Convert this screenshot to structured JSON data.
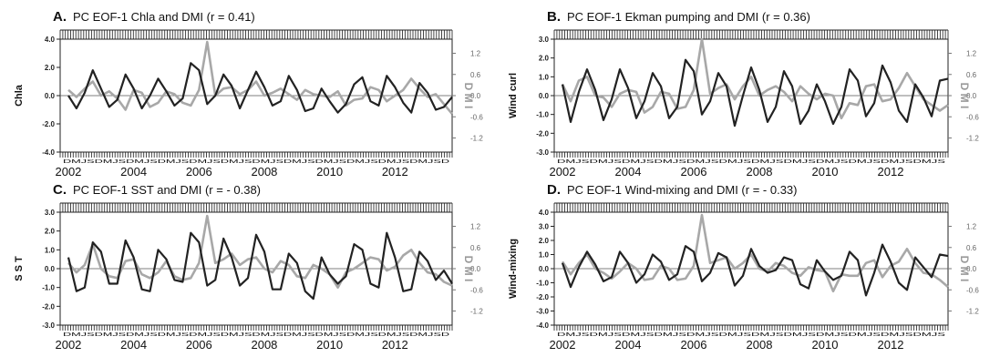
{
  "figure": {
    "panel_count": 4
  },
  "chart_data": [
    {
      "id": "A",
      "type": "line",
      "letter": "A.",
      "title": "PC EOF-1 Chla and DMI (r = 0.41)",
      "ylabel_left": "Chla",
      "ylabel_right": "D M I",
      "ylim_left": [
        -4.0,
        4.0
      ],
      "yticks_left": [
        4.0,
        2.0,
        0.0,
        -2.0,
        -4.0
      ],
      "yticks_left_labels": [
        "4.0",
        "2.0",
        "0.0",
        "-2.0",
        "-4.0"
      ],
      "ylim_right": [
        -1.6,
        1.6
      ],
      "yticks_right_labels": [
        "1.2",
        "0.6",
        "0.0",
        "-0.6",
        "-1.2"
      ],
      "yticks_right": [
        1.2,
        0.6,
        0.0,
        -0.6,
        -1.2
      ],
      "month_labels": "DMJSDMJSDMJSDMJSDMJSDMJSDMJSDMJSDMJSDMJSDMJSDMJSD",
      "year_labels": [
        "2002",
        "2004",
        "2006",
        "2008",
        "2010",
        "2012"
      ],
      "year_positions": [
        2002,
        2004,
        2006,
        2008,
        2010,
        2012
      ],
      "x": [
        2002.0,
        2002.25,
        2002.5,
        2002.75,
        2003.0,
        2003.25,
        2003.5,
        2003.75,
        2004.0,
        2004.25,
        2004.5,
        2004.75,
        2005.0,
        2005.25,
        2005.5,
        2005.75,
        2006.0,
        2006.25,
        2006.5,
        2006.75,
        2007.0,
        2007.25,
        2007.5,
        2007.75,
        2008.0,
        2008.25,
        2008.5,
        2008.75,
        2009.0,
        2009.25,
        2009.5,
        2009.75,
        2010.0,
        2010.25,
        2010.5,
        2010.75,
        2011.0,
        2011.25,
        2011.5,
        2011.75,
        2012.0,
        2012.25,
        2012.5,
        2012.75,
        2013.0,
        2013.25,
        2013.5,
        2013.75
      ],
      "xlim": [
        2001.75,
        2013.75
      ],
      "series": [
        {
          "color": "#222222",
          "axis": "left",
          "values": [
            0.0,
            -0.9,
            0.2,
            1.8,
            0.5,
            -0.8,
            -0.3,
            1.5,
            0.5,
            -0.9,
            0.0,
            1.2,
            0.3,
            -0.7,
            -0.2,
            2.3,
            1.8,
            -0.6,
            0.0,
            1.5,
            0.7,
            -0.9,
            0.4,
            1.7,
            0.6,
            -0.7,
            -0.4,
            1.4,
            0.4,
            -1.1,
            -0.9,
            0.5,
            -0.4,
            -1.2,
            -0.6,
            0.8,
            1.3,
            -0.4,
            -0.7,
            1.4,
            0.6,
            -0.5,
            -1.2,
            0.9,
            0.2,
            -1.0,
            -0.8,
            -0.1
          ]
        },
        {
          "color": "#a8a8a8",
          "axis": "left",
          "values": [
            0.4,
            -0.1,
            0.5,
            1.0,
            0.0,
            0.3,
            -0.2,
            -1.0,
            0.4,
            0.2,
            -0.8,
            -0.5,
            0.3,
            0.1,
            -0.5,
            -0.7,
            0.4,
            3.8,
            0.0,
            0.5,
            0.6,
            0.1,
            0.4,
            1.0,
            0.0,
            0.2,
            0.5,
            0.1,
            -0.3,
            0.4,
            0.1,
            0.0,
            -0.1,
            0.3,
            -0.7,
            -0.3,
            -0.2,
            0.6,
            0.4,
            -0.4,
            0.0,
            0.4,
            1.2,
            0.5,
            -0.1,
            0.1,
            -0.6,
            -1.3
          ]
        }
      ]
    },
    {
      "id": "B",
      "type": "line",
      "letter": "B.",
      "title": "PC EOF-1 Ekman pumping and DMI (r = 0.36)",
      "ylabel_left": "Wind curl",
      "ylabel_right": "D M I",
      "ylim_left": [
        -3.0,
        3.0
      ],
      "yticks_left": [
        3.0,
        2.0,
        1.0,
        0.0,
        -1.0,
        -2.0,
        -3.0
      ],
      "yticks_left_labels": [
        "3.0",
        "2.0",
        "1.0",
        "0.0",
        "-1.0",
        "-2.0",
        "-3.0"
      ],
      "ylim_right": [
        -1.6,
        1.6
      ],
      "yticks_right_labels": [
        "1.2",
        "0.6",
        "0.0",
        "-0.6",
        "-1.2"
      ],
      "yticks_right": [
        1.2,
        0.6,
        0.0,
        -0.6,
        -1.2
      ],
      "month_labels": "DMJSDMJSDMJSDMJSDMJSDMJSDMJSDMJSDMJSDMJSDMJSDMJS",
      "year_labels": [
        "2002",
        "2004",
        "2006",
        "2008",
        "2010",
        "2012"
      ],
      "year_positions": [
        2002,
        2004,
        2006,
        2008,
        2010,
        2012
      ],
      "x": [
        2002.0,
        2002.25,
        2002.5,
        2002.75,
        2003.0,
        2003.25,
        2003.5,
        2003.75,
        2004.0,
        2004.25,
        2004.5,
        2004.75,
        2005.0,
        2005.25,
        2005.5,
        2005.75,
        2006.0,
        2006.25,
        2006.5,
        2006.75,
        2007.0,
        2007.25,
        2007.5,
        2007.75,
        2008.0,
        2008.25,
        2008.5,
        2008.75,
        2009.0,
        2009.25,
        2009.5,
        2009.75,
        2010.0,
        2010.25,
        2010.5,
        2010.75,
        2011.0,
        2011.25,
        2011.5,
        2011.75,
        2012.0,
        2012.25,
        2012.5,
        2012.75,
        2013.0,
        2013.25,
        2013.5,
        2013.75
      ],
      "xlim": [
        2001.75,
        2013.75
      ],
      "series": [
        {
          "color": "#222222",
          "axis": "left",
          "values": [
            0.6,
            -1.4,
            0.2,
            1.4,
            0.3,
            -1.3,
            -0.2,
            1.4,
            0.4,
            -1.2,
            -0.3,
            1.2,
            0.5,
            -1.2,
            -0.6,
            1.9,
            1.3,
            -1.0,
            -0.3,
            1.2,
            0.5,
            -1.6,
            0.0,
            1.5,
            0.3,
            -1.4,
            -0.6,
            1.3,
            0.5,
            -1.5,
            -0.8,
            0.6,
            -0.3,
            -1.5,
            -0.6,
            1.4,
            0.8,
            -1.1,
            -0.4,
            1.6,
            0.7,
            -0.8,
            -1.4,
            0.6,
            -0.1,
            -1.1,
            0.8,
            0.9
          ]
        },
        {
          "color": "#a8a8a8",
          "axis": "left",
          "values": [
            0.6,
            -0.3,
            0.8,
            1.0,
            0.0,
            -0.1,
            -0.6,
            0.1,
            0.3,
            0.2,
            -0.9,
            -0.6,
            0.2,
            0.1,
            -0.7,
            -0.6,
            0.3,
            3.0,
            0.1,
            0.4,
            0.6,
            -0.2,
            0.5,
            1.0,
            0.0,
            0.3,
            0.5,
            0.2,
            -0.3,
            0.5,
            0.1,
            -0.2,
            0.1,
            0.0,
            -1.2,
            -0.4,
            -0.5,
            0.5,
            0.6,
            -0.3,
            -0.2,
            0.4,
            1.2,
            0.5,
            -0.2,
            -0.5,
            -0.8,
            -0.5
          ]
        }
      ]
    },
    {
      "id": "C",
      "type": "line",
      "letter": "C.",
      "title": "PC EOF-1 SST and DMI (r = - 0.38)",
      "ylabel_left": "S S T",
      "ylabel_right": "D M I",
      "ylim_left": [
        -3.0,
        3.0
      ],
      "yticks_left": [
        3.0,
        2.0,
        1.0,
        0.0,
        -1.0,
        -2.0,
        -3.0
      ],
      "yticks_left_labels": [
        "3.0",
        "2.0",
        "1.0",
        "0.0",
        "-1.0",
        "-2.0",
        "-3.0"
      ],
      "ylim_right": [
        -1.6,
        1.6
      ],
      "yticks_right_labels": [
        "1.2",
        "0.6",
        "0.0",
        "-0.6",
        "-1.2"
      ],
      "yticks_right": [
        1.2,
        0.6,
        0.0,
        -0.6,
        -1.2
      ],
      "month_labels": "DMJSDMJSDMJSDMJSDMJSDMJSDMJSDMJSDMJSDMJSDMJSDMJSD",
      "year_labels": [
        "2002",
        "2004",
        "2006",
        "2008",
        "2010",
        "2012"
      ],
      "year_positions": [
        2002,
        2004,
        2006,
        2008,
        2010,
        2012
      ],
      "x": [
        2002.0,
        2002.25,
        2002.5,
        2002.75,
        2003.0,
        2003.25,
        2003.5,
        2003.75,
        2004.0,
        2004.25,
        2004.5,
        2004.75,
        2005.0,
        2005.25,
        2005.5,
        2005.75,
        2006.0,
        2006.25,
        2006.5,
        2006.75,
        2007.0,
        2007.25,
        2007.5,
        2007.75,
        2008.0,
        2008.25,
        2008.5,
        2008.75,
        2009.0,
        2009.25,
        2009.5,
        2009.75,
        2010.0,
        2010.25,
        2010.5,
        2010.75,
        2011.0,
        2011.25,
        2011.5,
        2011.75,
        2012.0,
        2012.25,
        2012.5,
        2012.75,
        2013.0,
        2013.25,
        2013.5,
        2013.75
      ],
      "xlim": [
        2001.75,
        2013.75
      ],
      "series": [
        {
          "color": "#222222",
          "axis": "left",
          "values": [
            0.6,
            -1.2,
            -1.0,
            1.4,
            0.9,
            -0.8,
            -0.8,
            1.5,
            0.6,
            -1.1,
            -1.2,
            1.0,
            0.5,
            -0.6,
            -0.7,
            1.9,
            1.4,
            -0.9,
            -0.6,
            1.6,
            0.6,
            -0.9,
            -0.5,
            1.8,
            0.9,
            -1.1,
            -1.1,
            0.8,
            0.3,
            -1.2,
            -1.6,
            0.6,
            -0.3,
            -0.8,
            -0.4,
            1.3,
            1.0,
            -0.8,
            -1.0,
            1.9,
            0.6,
            -1.2,
            -1.1,
            0.9,
            0.4,
            -0.6,
            -0.1,
            -0.8
          ]
        },
        {
          "color": "#a8a8a8",
          "axis": "left",
          "values": [
            0.3,
            -0.2,
            0.2,
            1.3,
            0.0,
            -0.4,
            -0.5,
            0.4,
            0.5,
            -0.3,
            -0.5,
            -0.2,
            0.4,
            -0.4,
            -0.6,
            -0.5,
            0.3,
            2.8,
            0.3,
            0.5,
            0.8,
            0.2,
            0.5,
            0.6,
            0.0,
            -0.2,
            0.4,
            0.2,
            -0.4,
            -0.5,
            0.2,
            0.0,
            -0.3,
            -1.0,
            -0.2,
            0.0,
            0.3,
            0.6,
            0.5,
            -0.1,
            0.1,
            0.7,
            1.0,
            0.3,
            -0.2,
            -0.3,
            -0.7,
            -0.9
          ]
        }
      ]
    },
    {
      "id": "D",
      "type": "line",
      "letter": "D.",
      "title": "PC EOF-1 Wind-mixing and DMI (r = - 0.33)",
      "ylabel_left": "Wind-mixing",
      "ylabel_right": "D M I",
      "ylim_left": [
        -4.0,
        4.0
      ],
      "yticks_left": [
        4.0,
        3.0,
        2.0,
        1.0,
        0.0,
        -1.0,
        -2.0,
        -3.0,
        -4.0
      ],
      "yticks_left_labels": [
        "4.0",
        "3.0",
        "2.0",
        "1.0",
        "0.0",
        "-1.0",
        "-2.0",
        "-3.0",
        "-4.0"
      ],
      "ylim_right": [
        -1.6,
        1.6
      ],
      "yticks_right_labels": [
        "1.2",
        "0.6",
        "0.0",
        "-0.6",
        "-1.2"
      ],
      "yticks_right": [
        1.2,
        0.6,
        0.0,
        -0.6,
        -1.2
      ],
      "month_labels": "DMJSDMJSDMJSDMJSDMJSDMJSDMJSDMJSDMJSDMJSDMJSDMJS",
      "year_labels": [
        "2002",
        "2004",
        "2006",
        "2008",
        "2010",
        "2012"
      ],
      "year_positions": [
        2002,
        2004,
        2006,
        2008,
        2010,
        2012
      ],
      "x": [
        2002.0,
        2002.25,
        2002.5,
        2002.75,
        2003.0,
        2003.25,
        2003.5,
        2003.75,
        2004.0,
        2004.25,
        2004.5,
        2004.75,
        2005.0,
        2005.25,
        2005.5,
        2005.75,
        2006.0,
        2006.25,
        2006.5,
        2006.75,
        2007.0,
        2007.25,
        2007.5,
        2007.75,
        2008.0,
        2008.25,
        2008.5,
        2008.75,
        2009.0,
        2009.25,
        2009.5,
        2009.75,
        2010.0,
        2010.25,
        2010.5,
        2010.75,
        2011.0,
        2011.25,
        2011.5,
        2011.75,
        2012.0,
        2012.25,
        2012.5,
        2012.75,
        2013.0,
        2013.25,
        2013.5,
        2013.75
      ],
      "xlim": [
        2001.75,
        2013.75
      ],
      "series": [
        {
          "color": "#222222",
          "axis": "left",
          "values": [
            0.4,
            -1.3,
            0.1,
            1.2,
            0.3,
            -0.9,
            -0.6,
            1.2,
            0.4,
            -1.0,
            -0.4,
            1.0,
            0.5,
            -0.8,
            -0.4,
            1.6,
            1.2,
            -0.9,
            -0.3,
            1.1,
            0.8,
            -1.2,
            -0.5,
            1.4,
            0.2,
            -0.3,
            -0.1,
            0.8,
            0.6,
            -1.1,
            -1.4,
            0.6,
            -0.2,
            -0.8,
            -0.5,
            1.2,
            0.6,
            -1.9,
            -0.3,
            1.7,
            0.5,
            -1.0,
            -1.5,
            0.8,
            0.1,
            -0.6,
            1.0,
            0.9
          ]
        },
        {
          "color": "#a8a8a8",
          "axis": "left",
          "values": [
            0.5,
            -0.4,
            0.4,
            1.0,
            0.0,
            -0.3,
            -0.7,
            -0.2,
            0.4,
            0.0,
            -0.8,
            -0.7,
            0.2,
            0.0,
            -0.8,
            -0.7,
            0.2,
            3.8,
            0.4,
            0.6,
            0.8,
            0.0,
            0.4,
            1.0,
            0.0,
            -0.2,
            0.4,
            0.2,
            -0.3,
            -0.5,
            0.1,
            -0.1,
            -0.2,
            -1.6,
            -0.4,
            -0.5,
            -0.5,
            0.4,
            0.6,
            -0.6,
            0.2,
            0.5,
            1.4,
            0.4,
            -0.3,
            -0.4,
            -0.8,
            -1.3
          ]
        }
      ]
    }
  ]
}
